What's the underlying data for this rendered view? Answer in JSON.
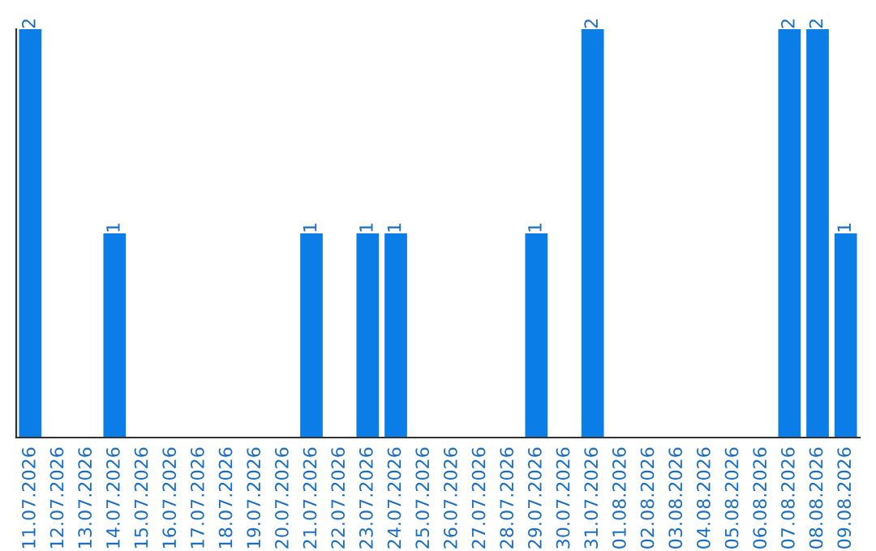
{
  "chart_data": {
    "type": "bar",
    "categories": [
      "11.07.2026",
      "12.07.2026",
      "13.07.2026",
      "14.07.2026",
      "15.07.2026",
      "16.07.2026",
      "17.07.2026",
      "18.07.2026",
      "19.07.2026",
      "20.07.2026",
      "21.07.2026",
      "22.07.2026",
      "23.07.2026",
      "24.07.2026",
      "25.07.2026",
      "26.07.2026",
      "27.07.2026",
      "28.07.2026",
      "29.07.2026",
      "30.07.2026",
      "31.07.2026",
      "01.08.2026",
      "02.08.2026",
      "03.08.2026",
      "04.08.2026",
      "05.08.2026",
      "06.08.2026",
      "07.08.2026",
      "08.08.2026",
      "09.08.2026"
    ],
    "values": [
      2,
      0,
      0,
      1,
      0,
      0,
      0,
      0,
      0,
      0,
      1,
      0,
      1,
      1,
      0,
      0,
      0,
      0,
      1,
      0,
      2,
      0,
      0,
      0,
      0,
      0,
      0,
      2,
      2,
      1
    ],
    "value_labels": [
      "2",
      null,
      null,
      "1",
      null,
      null,
      null,
      null,
      null,
      null,
      "1",
      null,
      "1",
      "1",
      null,
      null,
      null,
      null,
      "1",
      null,
      "2",
      null,
      null,
      null,
      null,
      null,
      null,
      "2",
      "2",
      "1"
    ],
    "color": "#0a7de6",
    "grid": false,
    "legend": false
  }
}
